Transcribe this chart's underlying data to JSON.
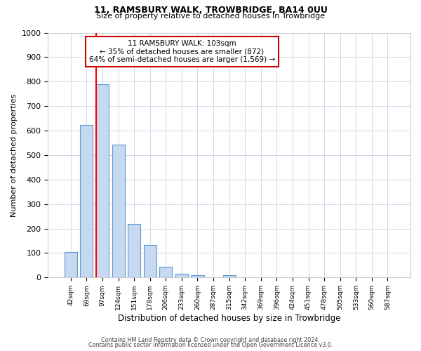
{
  "title1": "11, RAMSBURY WALK, TROWBRIDGE, BA14 0UU",
  "title2": "Size of property relative to detached houses in Trowbridge",
  "xlabel": "Distribution of detached houses by size in Trowbridge",
  "ylabel": "Number of detached properties",
  "bin_labels": [
    "42sqm",
    "69sqm",
    "97sqm",
    "124sqm",
    "151sqm",
    "178sqm",
    "206sqm",
    "233sqm",
    "260sqm",
    "287sqm",
    "315sqm",
    "342sqm",
    "369sqm",
    "396sqm",
    "424sqm",
    "451sqm",
    "478sqm",
    "505sqm",
    "533sqm",
    "560sqm",
    "587sqm"
  ],
  "bar_heights": [
    103,
    624,
    790,
    543,
    220,
    132,
    43,
    15,
    10,
    0,
    10,
    0,
    0,
    0,
    0,
    0,
    0,
    0,
    0,
    0,
    0
  ],
  "bar_color": "#c6d9f0",
  "bar_edge_color": "#5b9bd5",
  "ylim": [
    0,
    1000
  ],
  "yticks": [
    0,
    100,
    200,
    300,
    400,
    500,
    600,
    700,
    800,
    900,
    1000
  ],
  "red_line_index": 2,
  "annotation_title": "11 RAMSBURY WALK: 103sqm",
  "annotation_line1": "← 35% of detached houses are smaller (872)",
  "annotation_line2": "64% of semi-detached houses are larger (1,569) →",
  "footer1": "Contains HM Land Registry data © Crown copyright and database right 2024.",
  "footer2": "Contains public sector information licensed under the Open Government Licence v3.0.",
  "bg_color": "#ffffff",
  "grid_color": "#d0d8e8",
  "annotation_box_edge": "#cc0000"
}
